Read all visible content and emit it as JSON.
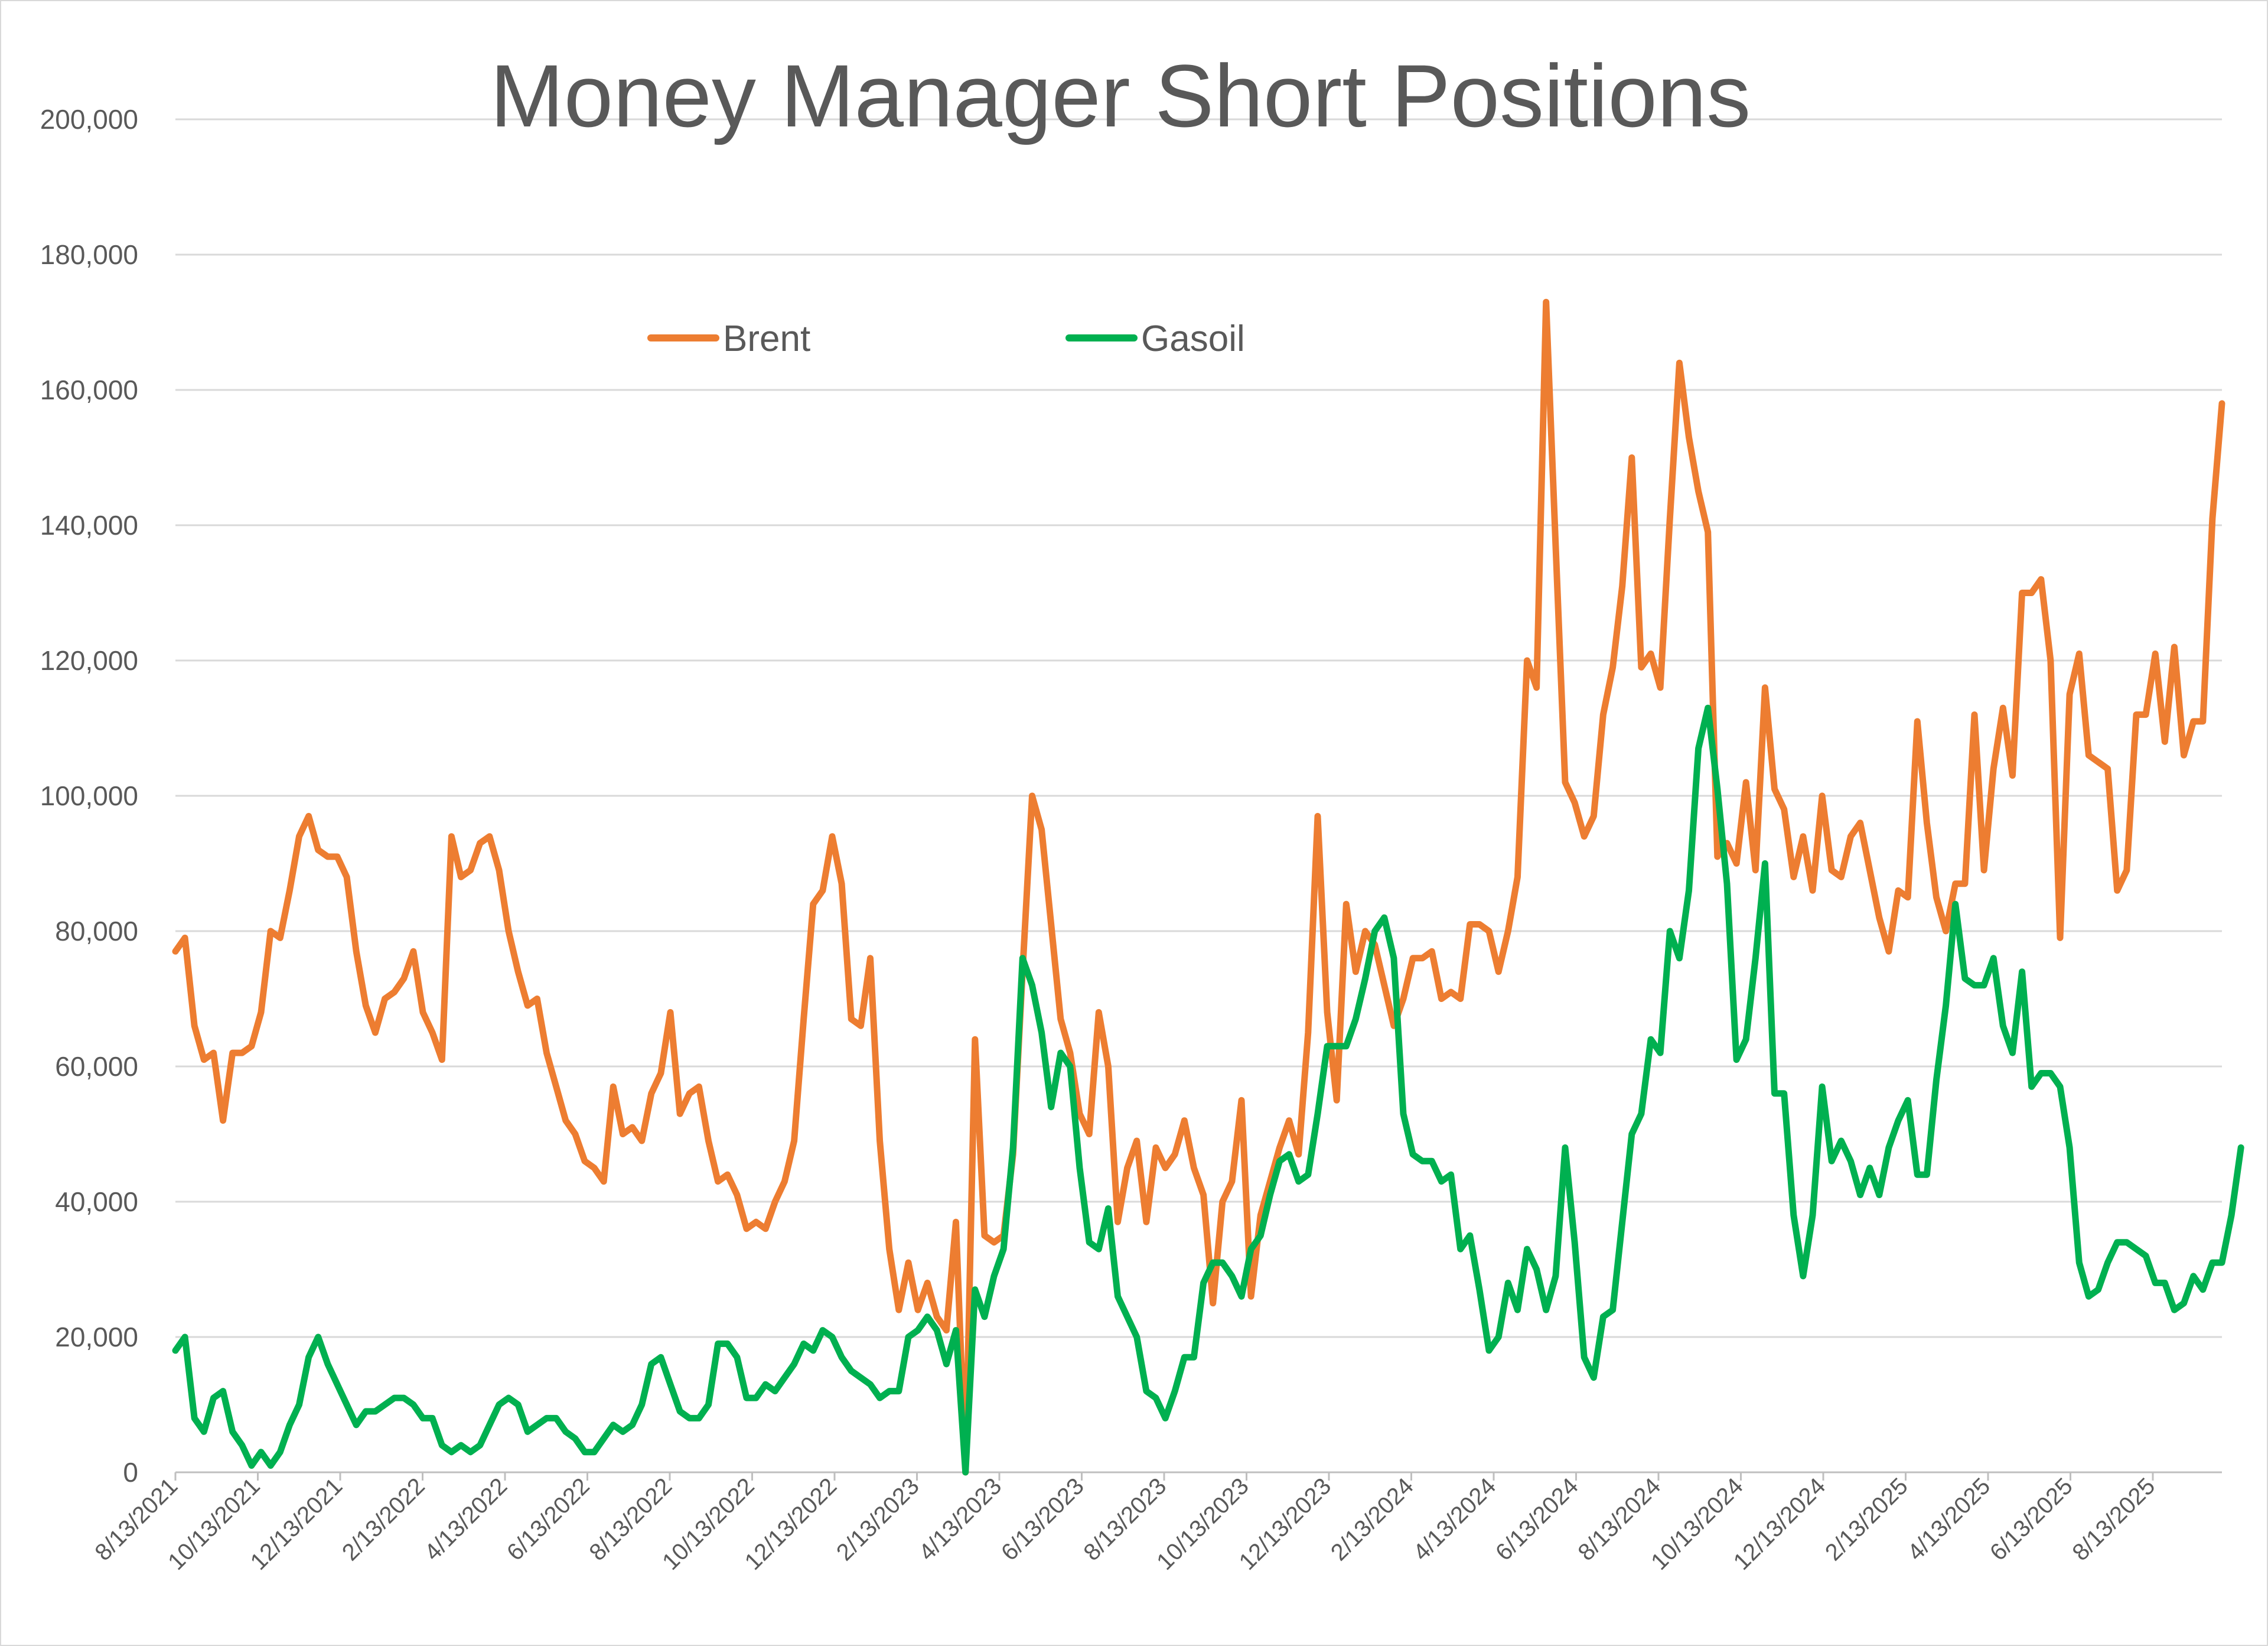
{
  "chart_data": {
    "type": "line",
    "title": "Money Manager Short Positions",
    "xlabel": "",
    "ylabel": "",
    "ylim": [
      0,
      200000
    ],
    "y_ticks": [
      "0",
      "20,000",
      "40,000",
      "60,000",
      "80,000",
      "100,000",
      "120,000",
      "140,000",
      "160,000",
      "180,000",
      "200,000"
    ],
    "x_ticks": [
      "8/13/2021",
      "10/13/2021",
      "12/13/2021",
      "2/13/2022",
      "4/13/2022",
      "6/13/2022",
      "8/13/2022",
      "10/13/2022",
      "12/13/2022",
      "2/13/2023",
      "4/13/2023",
      "6/13/2023",
      "8/13/2023",
      "10/13/2023",
      "12/13/2023",
      "2/13/2024",
      "4/13/2024",
      "6/13/2024",
      "8/13/2024",
      "10/13/2024",
      "12/13/2024",
      "2/13/2025",
      "4/13/2025",
      "6/13/2025",
      "8/13/2025"
    ],
    "grid": true,
    "legend_position": "top-left",
    "series": [
      {
        "name": "Brent",
        "color": "#ED7D31",
        "values": [
          77000,
          79000,
          66000,
          61000,
          62000,
          52000,
          62000,
          62000,
          63000,
          68000,
          80000,
          79000,
          86000,
          94000,
          97000,
          92000,
          91000,
          91000,
          88000,
          77000,
          69000,
          65000,
          70000,
          71000,
          73000,
          77000,
          68000,
          65000,
          61000,
          94000,
          88000,
          89000,
          93000,
          94000,
          89000,
          80000,
          74000,
          69000,
          70000,
          62000,
          57000,
          52000,
          50000,
          46000,
          45000,
          43000,
          57000,
          50000,
          51000,
          49000,
          56000,
          59000,
          68000,
          53000,
          56000,
          57000,
          49000,
          43000,
          44000,
          41000,
          36000,
          37000,
          36000,
          40000,
          43000,
          49000,
          67000,
          84000,
          86000,
          94000,
          87000,
          67000,
          66000,
          76000,
          49000,
          33000,
          24000,
          31000,
          24000,
          28000,
          23000,
          21000,
          37000,
          0,
          64000,
          35000,
          34000,
          35000,
          47000,
          74000,
          100000,
          95000,
          81000,
          67000,
          62000,
          53000,
          50000,
          68000,
          60000,
          37000,
          45000,
          49000,
          37000,
          48000,
          45000,
          47000,
          52000,
          45000,
          41000,
          25000,
          40000,
          43000,
          55000,
          26000,
          38000,
          43000,
          48000,
          52000,
          47000,
          65000,
          97000,
          68000,
          55000,
          84000,
          74000,
          80000,
          78000,
          72000,
          66000,
          70000,
          76000,
          76000,
          77000,
          70000,
          71000,
          70000,
          81000,
          81000,
          80000,
          74000,
          80000,
          88000,
          120000,
          116000,
          173000,
          137000,
          102000,
          99000,
          94000,
          97000,
          112000,
          119000,
          131000,
          150000,
          119000,
          121000,
          116000,
          141000,
          164000,
          153000,
          145000,
          139000,
          91000,
          93000,
          90000,
          102000,
          89000,
          116000,
          101000,
          98000,
          88000,
          94000,
          86000,
          100000,
          89000,
          88000,
          94000,
          96000,
          89000,
          82000,
          77000,
          86000,
          85000,
          111000,
          96000,
          85000,
          80000,
          87000,
          87000,
          112000,
          89000,
          104000,
          113000,
          103000,
          130000,
          130000,
          132000,
          120000,
          79000,
          115000,
          121000,
          106000,
          105000,
          104000,
          86000,
          89000,
          112000,
          112000,
          121000,
          108000,
          122000,
          106000,
          111000,
          111000,
          141000,
          158000
        ]
      },
      {
        "name": "Gasoil",
        "color": "#00B050",
        "values": [
          18000,
          20000,
          8000,
          6000,
          11000,
          12000,
          6000,
          4000,
          1000,
          3000,
          1000,
          3000,
          7000,
          10000,
          17000,
          20000,
          16000,
          13000,
          10000,
          7000,
          9000,
          9000,
          10000,
          11000,
          11000,
          10000,
          8000,
          8000,
          4000,
          3000,
          4000,
          3000,
          4000,
          7000,
          10000,
          11000,
          10000,
          6000,
          7000,
          8000,
          8000,
          6000,
          5000,
          3000,
          3000,
          5000,
          7000,
          6000,
          7000,
          10000,
          16000,
          17000,
          13000,
          9000,
          8000,
          8000,
          10000,
          19000,
          19000,
          17000,
          11000,
          11000,
          13000,
          12000,
          14000,
          16000,
          19000,
          18000,
          21000,
          20000,
          17000,
          15000,
          14000,
          13000,
          11000,
          12000,
          12000,
          20000,
          21000,
          23000,
          21000,
          16000,
          21000,
          0,
          27000,
          23000,
          29000,
          33000,
          48000,
          76000,
          72000,
          65000,
          54000,
          62000,
          60000,
          45000,
          34000,
          33000,
          39000,
          26000,
          23000,
          20000,
          12000,
          11000,
          8000,
          12000,
          17000,
          17000,
          28000,
          31000,
          31000,
          29000,
          26000,
          33000,
          35000,
          41000,
          46000,
          47000,
          43000,
          44000,
          53000,
          63000,
          63000,
          63000,
          67000,
          73000,
          80000,
          82000,
          76000,
          53000,
          47000,
          46000,
          46000,
          43000,
          44000,
          33000,
          35000,
          27000,
          18000,
          20000,
          28000,
          24000,
          33000,
          30000,
          24000,
          29000,
          48000,
          34000,
          17000,
          14000,
          23000,
          24000,
          37000,
          50000,
          53000,
          64000,
          62000,
          80000,
          76000,
          86000,
          107000,
          113000,
          101000,
          87000,
          61000,
          64000,
          76000,
          90000,
          56000,
          56000,
          38000,
          29000,
          38000,
          57000,
          46000,
          49000,
          46000,
          41000,
          45000,
          41000,
          48000,
          52000,
          55000,
          44000,
          44000,
          58000,
          69000,
          84000,
          73000,
          72000,
          72000,
          76000,
          66000,
          62000,
          74000,
          57000,
          59000,
          59000,
          57000,
          48000,
          31000,
          26000,
          27000,
          31000,
          34000,
          34000,
          33000,
          32000,
          28000,
          28000,
          24000,
          25000,
          29000,
          27000,
          31000,
          31000,
          38000,
          48000
        ]
      }
    ]
  }
}
